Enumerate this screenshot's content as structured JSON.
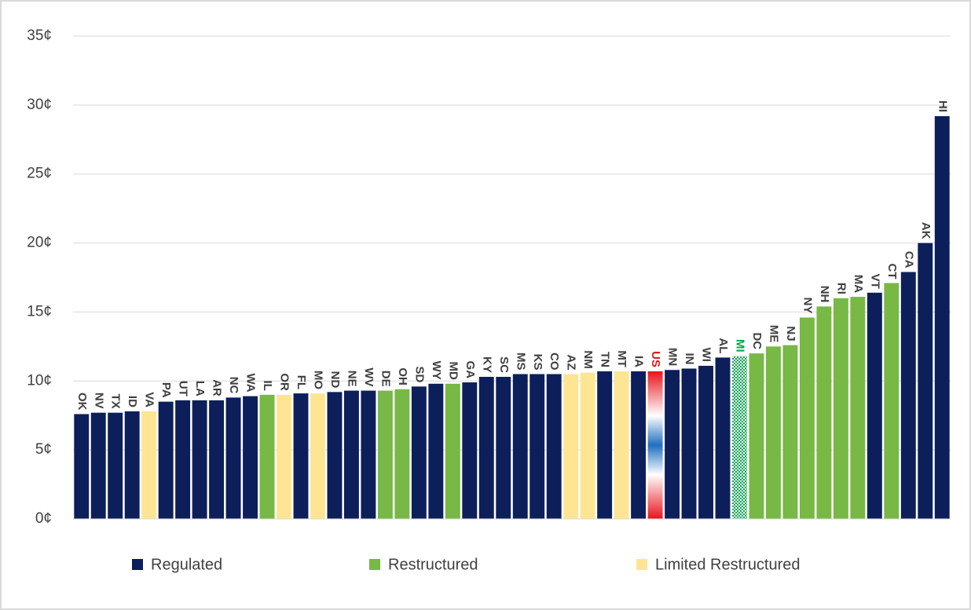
{
  "chart_data": {
    "type": "bar",
    "categories": [
      "OK",
      "NV",
      "TX",
      "ID",
      "VA",
      "PA",
      "UT",
      "LA",
      "AR",
      "NC",
      "WA",
      "IL",
      "OR",
      "FL",
      "MO",
      "ND",
      "NE",
      "WV",
      "DE",
      "OH",
      "SD",
      "WY",
      "MD",
      "GA",
      "KY",
      "SC",
      "MS",
      "KS",
      "CO",
      "AZ",
      "NM",
      "TN",
      "MT",
      "IA",
      "US",
      "MN",
      "IN",
      "WI",
      "AL",
      "MI",
      "DC",
      "ME",
      "NJ",
      "NY",
      "NH",
      "RI",
      "MA",
      "VT",
      "CT",
      "CA",
      "AK",
      "HI"
    ],
    "values": [
      7.6,
      7.7,
      7.7,
      7.8,
      7.8,
      8.5,
      8.6,
      8.6,
      8.6,
      8.8,
      8.9,
      9.0,
      9.0,
      9.1,
      9.1,
      9.2,
      9.3,
      9.3,
      9.3,
      9.4,
      9.6,
      9.8,
      9.8,
      9.9,
      10.3,
      10.3,
      10.5,
      10.5,
      10.5,
      10.5,
      10.6,
      10.7,
      10.7,
      10.7,
      10.7,
      10.8,
      10.9,
      11.1,
      11.7,
      11.8,
      12.0,
      12.5,
      12.6,
      14.6,
      15.4,
      16.0,
      16.1,
      16.4,
      17.1,
      17.9,
      20.0,
      29.2
    ],
    "bar_colors": [
      "#0d1f5a",
      "#0d1f5a",
      "#0d1f5a",
      "#0d1f5a",
      "#fde593",
      "#0d1f5a",
      "#0d1f5a",
      "#0d1f5a",
      "#0d1f5a",
      "#0d1f5a",
      "#0d1f5a",
      "#78b844",
      "#fde593",
      "#0d1f5a",
      "#fde593",
      "#0d1f5a",
      "#0d1f5a",
      "#0d1f5a",
      "#78b844",
      "#78b844",
      "#0d1f5a",
      "#0d1f5a",
      "#78b844",
      "#0d1f5a",
      "#0d1f5a",
      "#0d1f5a",
      "#0d1f5a",
      "#0d1f5a",
      "#0d1f5a",
      "#fde593",
      "#fde593",
      "#0d1f5a",
      "#fde593",
      "#0d1f5a",
      "#e8141c",
      "#0d1f5a",
      "#0d1f5a",
      "#0d1f5a",
      "#0d1f5a",
      "#00a650",
      "#78b844",
      "#78b844",
      "#78b844",
      "#78b844",
      "#78b844",
      "#78b844",
      "#78b844",
      "#0d1f5a",
      "#78b844",
      "#0d1f5a",
      "#0d1f5a",
      "#0d1f5a"
    ],
    "bar_styles": [
      "solid",
      "solid",
      "solid",
      "solid",
      "solid",
      "solid",
      "solid",
      "solid",
      "solid",
      "solid",
      "solid",
      "solid",
      "solid",
      "solid",
      "solid",
      "solid",
      "solid",
      "solid",
      "solid",
      "solid",
      "solid",
      "solid",
      "solid",
      "solid",
      "solid",
      "solid",
      "solid",
      "solid",
      "solid",
      "solid",
      "solid",
      "solid",
      "solid",
      "solid",
      "gradient",
      "solid",
      "solid",
      "solid",
      "solid",
      "checkered",
      "solid",
      "solid",
      "solid",
      "solid",
      "solid",
      "solid",
      "solid",
      "solid",
      "solid",
      "solid",
      "solid",
      "solid"
    ],
    "label_colors": {
      "US": "#e8141c",
      "MI": "#00a650"
    },
    "legend": [
      {
        "name": "Regulated",
        "color": "#0d1f5a"
      },
      {
        "name": "Restructured",
        "color": "#78b844"
      },
      {
        "name": "Limited Restructured",
        "color": "#fde593"
      }
    ],
    "ylim": [
      0,
      35
    ],
    "yticks": [
      {
        "value": 0,
        "label": "0¢"
      },
      {
        "value": 5,
        "label": "5¢"
      },
      {
        "value": 10,
        "label": "10¢"
      },
      {
        "value": 15,
        "label": "15¢"
      },
      {
        "value": 20,
        "label": "20¢"
      },
      {
        "value": 25,
        "label": "25¢"
      },
      {
        "value": 30,
        "label": "30¢"
      },
      {
        "value": 35,
        "label": "35¢"
      }
    ],
    "grid": true
  }
}
